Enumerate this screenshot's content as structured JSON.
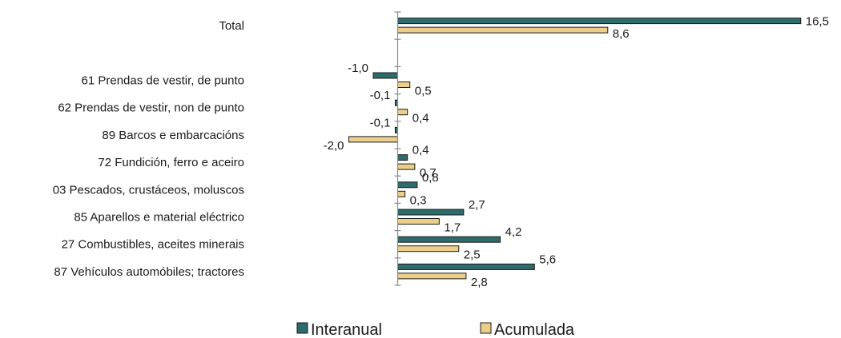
{
  "chart_data": {
    "type": "bar",
    "orientation": "horizontal",
    "categories": [
      "Total",
      "",
      "61 Prendas de vestir, de punto",
      "62 Prendas de vestir, non de punto",
      "89 Barcos e embarcacións",
      "72 Fundición, ferro e aceiro",
      "03 Pescados, crustáceos, moluscos",
      "85 Aparellos e material eléctrico",
      "27 Combustibles, aceites minerais",
      "87 Vehículos automóbiles; tractores"
    ],
    "series": [
      {
        "name": "Interanual",
        "color": "#2e6b6b",
        "values": [
          16.5,
          null,
          -1.0,
          -0.1,
          -0.1,
          0.4,
          0.8,
          2.7,
          4.2,
          5.6
        ],
        "labels": [
          "16,5",
          "",
          "-1,0",
          "-0,1",
          "-0,1",
          "0,4",
          "0,8",
          "2,7",
          "4,2",
          "5,6"
        ]
      },
      {
        "name": "Acumulada",
        "color": "#e9cf8a",
        "values": [
          8.6,
          null,
          0.5,
          0.4,
          -2.0,
          0.7,
          0.3,
          1.7,
          2.5,
          2.8
        ],
        "labels": [
          "8,6",
          "",
          "0,5",
          "0,4",
          "-2,0",
          "0,7",
          "0,3",
          "1,7",
          "2,5",
          "2,8"
        ]
      }
    ],
    "xlim": [
      -2.0,
      16.5
    ],
    "title": "",
    "xlabel": "",
    "ylabel": "",
    "legend": "bottom",
    "grid": false
  }
}
